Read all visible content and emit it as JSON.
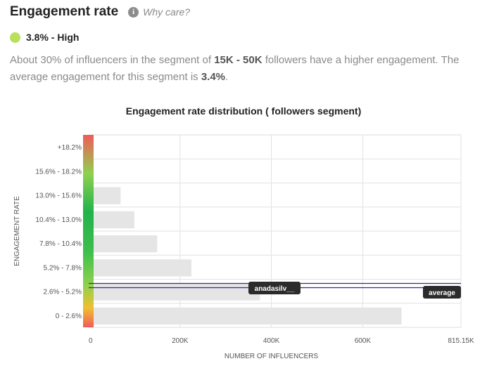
{
  "header": {
    "title": "Engagement rate",
    "info_icon": "info-icon",
    "why_link": "Why care?"
  },
  "rate": {
    "value_text": "3.8% - High",
    "dot_color": "#b8e05a"
  },
  "description": {
    "part1": "About 30% of influencers in the segment of ",
    "segment": "15K - 50K",
    "part2": " followers have a higher engagement. The average engagement for this segment is ",
    "average": "3.4%",
    "part3": "."
  },
  "chart_data": {
    "type": "bar",
    "orientation": "horizontal",
    "title": "Engagement rate distribution ( followers segment)",
    "xlabel": "NUMBER OF INFLUENCERS",
    "ylabel": "ENGAGEMENT RATE",
    "categories": [
      "+18.2%",
      "15.6% - 18.2%",
      "13.0% - 15.6%",
      "10.4% - 13.0%",
      "7.8% - 10.4%",
      "5.2% - 7.8%",
      "2.6% - 5.2%",
      "0 - 2.6%"
    ],
    "values": [
      0,
      5000,
      70000,
      100000,
      150000,
      225000,
      375000,
      685000
    ],
    "xlim": [
      0,
      815150
    ],
    "xticks": [
      0,
      200000,
      400000,
      600000,
      815150
    ],
    "xtick_labels": [
      "0",
      "200K",
      "400K",
      "600K",
      "815.15K"
    ],
    "grid": true,
    "bar_color": "#e5e5e5",
    "markers": [
      {
        "label": "anadasilv__",
        "category": "2.6% - 5.2%",
        "value": 3.8
      },
      {
        "label": "average",
        "category": "2.6% - 5.2%",
        "value": 3.4
      }
    ],
    "color_scale": [
      "#f05a5a",
      "#8fd14f",
      "#22b24c",
      "#3cbe4c",
      "#8fd14f",
      "#f0c030",
      "#f05a5a"
    ]
  }
}
